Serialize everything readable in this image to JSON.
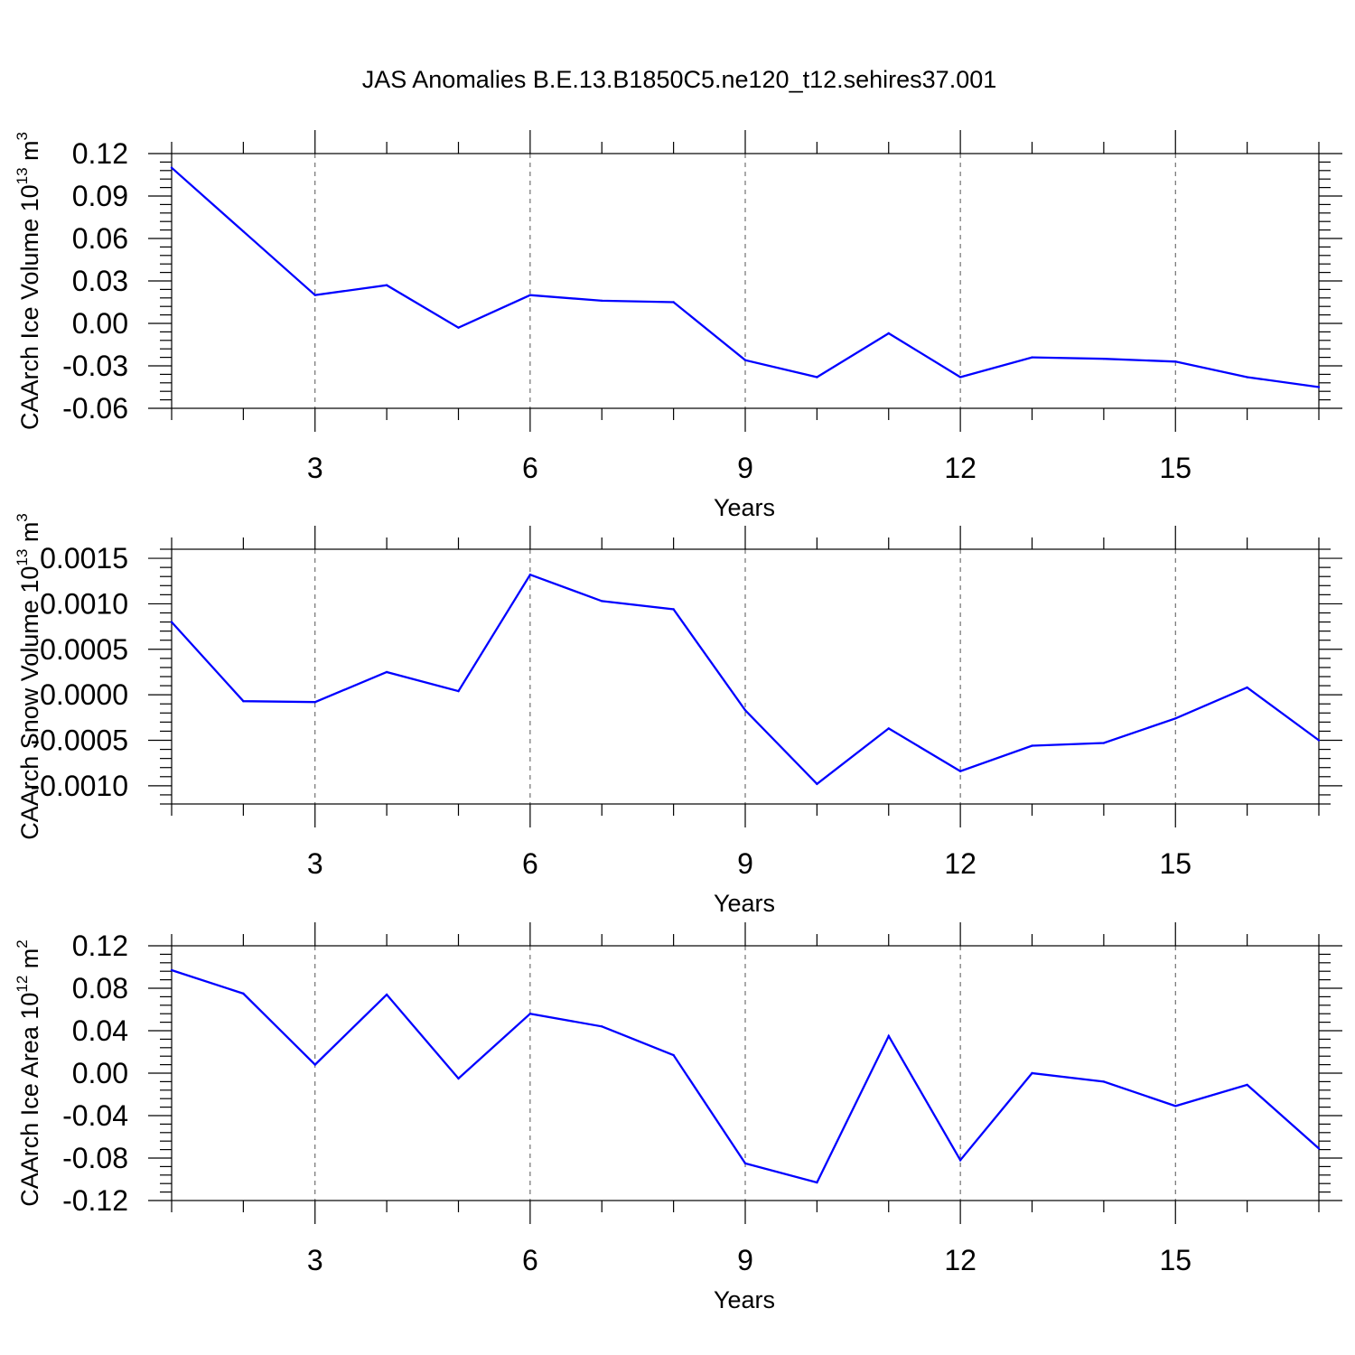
{
  "title": "JAS Anomalies B.E.13.B1850C5.ne120_t12.sehires37.001",
  "colors": {
    "line": "#0000ff",
    "axis": "#000000",
    "grid": "#555555"
  },
  "chart_data": [
    {
      "type": "line",
      "xlabel": "Years",
      "ylabel": {
        "text": "CAArch Ice Volume 10",
        "sup": "13",
        "unit": " m",
        "unit_sup": "3"
      },
      "x": [
        1,
        2,
        3,
        4,
        5,
        6,
        7,
        8,
        9,
        10,
        11,
        12,
        13,
        14,
        15,
        16,
        17
      ],
      "values": [
        0.11,
        0.065,
        0.02,
        0.027,
        -0.003,
        0.02,
        0.016,
        0.015,
        -0.026,
        -0.038,
        -0.007,
        -0.038,
        -0.024,
        -0.025,
        -0.027,
        -0.038,
        -0.045
      ],
      "xlim": [
        1,
        17
      ],
      "ylim": [
        -0.06,
        0.12
      ],
      "xticks": [
        3,
        6,
        9,
        12,
        15
      ],
      "xtick_labels": [
        "3",
        "6",
        "9",
        "12",
        "15"
      ],
      "yticks": [
        0.12,
        0.09,
        0.06,
        0.03,
        0.0,
        -0.03,
        -0.06
      ],
      "ytick_labels": [
        "0.12",
        "0.09",
        "0.06",
        "0.03",
        "0.00",
        "-0.03",
        "-0.06"
      ],
      "grid": "vertical dashed at major x ticks"
    },
    {
      "type": "line",
      "xlabel": "Years",
      "ylabel": {
        "text": "CAArch Snow Volume 10",
        "sup": "13",
        "unit": " m",
        "unit_sup": "3"
      },
      "x": [
        1,
        2,
        3,
        4,
        5,
        6,
        7,
        8,
        9,
        10,
        11,
        12,
        13,
        14,
        15,
        16,
        17
      ],
      "values": [
        0.0008,
        -7e-05,
        -8e-05,
        0.00025,
        4e-05,
        0.00132,
        0.00103,
        0.00094,
        -0.00017,
        -0.00098,
        -0.00037,
        -0.00084,
        -0.00056,
        -0.00053,
        -0.00026,
        8e-05,
        -0.0005
      ],
      "xlim": [
        1,
        17
      ],
      "ylim": [
        -0.0012,
        0.0016
      ],
      "xticks": [
        3,
        6,
        9,
        12,
        15
      ],
      "xtick_labels": [
        "3",
        "6",
        "9",
        "12",
        "15"
      ],
      "yticks": [
        0.0015,
        0.001,
        0.0005,
        0.0,
        -0.0005,
        -0.001
      ],
      "ytick_labels": [
        "0.0015",
        "0.0010",
        "0.0005",
        "0.0000",
        "-0.0005",
        "-0.0010"
      ],
      "grid": "vertical dashed at major x ticks"
    },
    {
      "type": "line",
      "xlabel": "Years",
      "ylabel": {
        "text": "CAArch Ice Area 10",
        "sup": "12",
        "unit": " m",
        "unit_sup": "2"
      },
      "x": [
        1,
        2,
        3,
        4,
        5,
        6,
        7,
        8,
        9,
        10,
        11,
        12,
        13,
        14,
        15,
        16,
        17
      ],
      "values": [
        0.097,
        0.075,
        0.008,
        0.074,
        -0.005,
        0.056,
        0.044,
        0.017,
        -0.085,
        -0.103,
        0.035,
        -0.082,
        0.0,
        -0.008,
        -0.031,
        -0.011,
        -0.071
      ],
      "xlim": [
        1,
        17
      ],
      "ylim": [
        -0.12,
        0.12
      ],
      "xticks": [
        3,
        6,
        9,
        12,
        15
      ],
      "xtick_labels": [
        "3",
        "6",
        "9",
        "12",
        "15"
      ],
      "yticks": [
        0.12,
        0.08,
        0.04,
        0.0,
        -0.04,
        -0.08,
        -0.12
      ],
      "ytick_labels": [
        "0.12",
        "0.08",
        "0.04",
        "0.00",
        "-0.04",
        "-0.08",
        "-0.12"
      ],
      "grid": "vertical dashed at major x ticks"
    }
  ]
}
